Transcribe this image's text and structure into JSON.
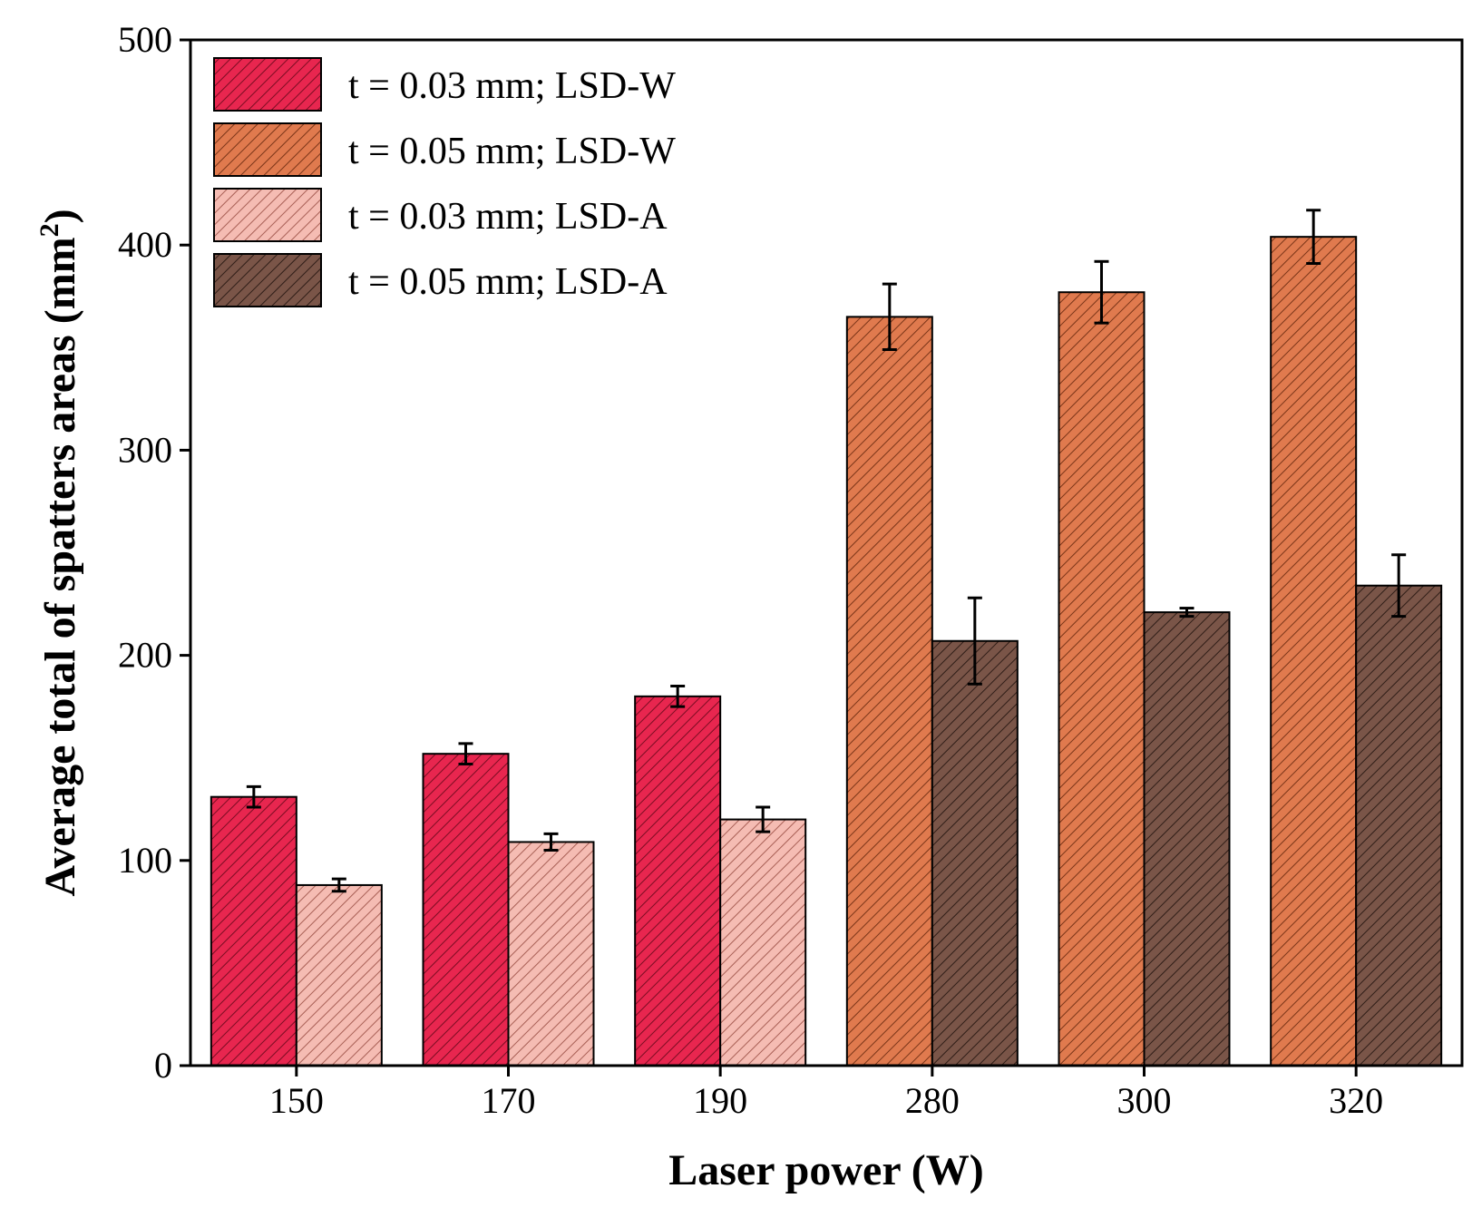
{
  "chart_data": {
    "type": "bar",
    "xlabel": "Laser power (W)",
    "ylabel_main": "Average total of spatters areas (mm",
    "ylabel_sup": "2",
    "ylabel_end": ")",
    "ylim": [
      0,
      500
    ],
    "yticks": [
      0,
      100,
      200,
      300,
      400,
      500
    ],
    "grid": false,
    "legend_position": "top-left",
    "categories": [
      "150",
      "170",
      "190",
      "280",
      "300",
      "320"
    ],
    "series": [
      {
        "name": "t = 0.03 mm; LSD-W",
        "color": "#e8264f",
        "hatch": "#7a0d22",
        "values": [
          131,
          152,
          180,
          null,
          null,
          null
        ],
        "errors": [
          5,
          5,
          5,
          null,
          null,
          null
        ]
      },
      {
        "name": "t = 0.05 mm; LSD-W",
        "color": "#e07a4e",
        "hatch": "#7a3518",
        "values": [
          null,
          null,
          null,
          365,
          377,
          404
        ],
        "errors": [
          null,
          null,
          null,
          16,
          15,
          13
        ]
      },
      {
        "name": "t = 0.03 mm; LSD-A",
        "color": "#f5bcb3",
        "hatch": "#a85f55",
        "values": [
          88,
          109,
          120,
          null,
          null,
          null
        ],
        "errors": [
          3,
          4,
          6,
          null,
          null,
          null
        ]
      },
      {
        "name": "t = 0.05 mm; LSD-A",
        "color": "#7a5548",
        "hatch": "#2f1d17",
        "values": [
          null,
          null,
          null,
          207,
          221,
          234
        ],
        "errors": [
          null,
          null,
          null,
          21,
          2,
          15
        ]
      }
    ]
  }
}
